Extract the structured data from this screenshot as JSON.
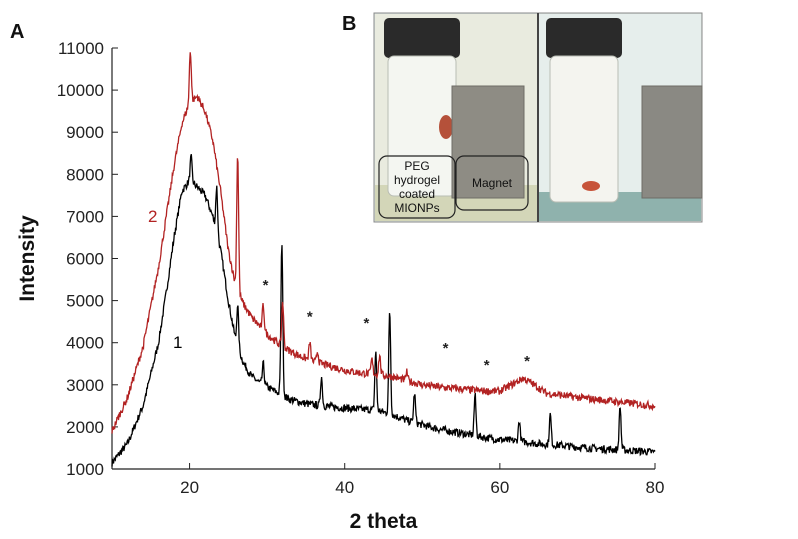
{
  "panels": {
    "a": "A",
    "b": "B"
  },
  "chart_data": {
    "type": "line",
    "xlabel": "2 theta",
    "ylabel": "Intensity",
    "xlim": [
      10,
      80
    ],
    "ylim": [
      1000,
      11000
    ],
    "xticks": [
      20,
      40,
      60,
      80
    ],
    "yticks": [
      1000,
      2000,
      3000,
      4000,
      5000,
      6000,
      7000,
      8000,
      9000,
      10000,
      11000
    ],
    "grid": false,
    "series": [
      {
        "name": "1",
        "color": "#000000",
        "points": [
          [
            10,
            1150
          ],
          [
            12,
            1600
          ],
          [
            14,
            2500
          ],
          [
            16,
            4000
          ],
          [
            17,
            5200
          ],
          [
            18,
            6500
          ],
          [
            19,
            7600
          ],
          [
            20,
            7850
          ],
          [
            21,
            7700
          ],
          [
            22,
            7500
          ],
          [
            23,
            7000
          ],
          [
            24,
            6200
          ],
          [
            25,
            5000
          ],
          [
            26,
            4000
          ],
          [
            27,
            3500
          ],
          [
            28,
            3200
          ],
          [
            29,
            3050
          ],
          [
            30,
            2950
          ],
          [
            31,
            2850
          ],
          [
            32,
            2750
          ],
          [
            33,
            2650
          ],
          [
            35,
            2550
          ],
          [
            37,
            2500
          ],
          [
            40,
            2450
          ],
          [
            42,
            2420
          ],
          [
            44,
            2400
          ],
          [
            46,
            2300
          ],
          [
            48,
            2150
          ],
          [
            50,
            2050
          ],
          [
            52,
            1950
          ],
          [
            55,
            1850
          ],
          [
            58,
            1750
          ],
          [
            60,
            1700
          ],
          [
            63,
            1650
          ],
          [
            65,
            1600
          ],
          [
            68,
            1560
          ],
          [
            70,
            1520
          ],
          [
            73,
            1480
          ],
          [
            76,
            1450
          ],
          [
            80,
            1400
          ]
        ],
        "peaks": [
          [
            20.2,
            8400
          ],
          [
            23.5,
            7700
          ],
          [
            26.2,
            4900
          ],
          [
            29.5,
            3500
          ],
          [
            31.9,
            6400
          ],
          [
            37,
            3200
          ],
          [
            44,
            3800
          ],
          [
            45.8,
            4750
          ],
          [
            49,
            2800
          ],
          [
            56.8,
            2750
          ],
          [
            62.5,
            2150
          ],
          [
            66.5,
            2300
          ],
          [
            75.5,
            2500
          ]
        ]
      },
      {
        "name": "2",
        "color": "#b22222",
        "points": [
          [
            10,
            1900
          ],
          [
            12,
            2700
          ],
          [
            14,
            3900
          ],
          [
            16,
            5800
          ],
          [
            17,
            7000
          ],
          [
            18,
            8200
          ],
          [
            19,
            9200
          ],
          [
            20,
            9700
          ],
          [
            21,
            9850
          ],
          [
            22,
            9500
          ],
          [
            23,
            8800
          ],
          [
            24,
            7600
          ],
          [
            25,
            6200
          ],
          [
            26,
            5300
          ],
          [
            27,
            4900
          ],
          [
            28,
            4600
          ],
          [
            29,
            4400
          ],
          [
            30,
            4200
          ],
          [
            31,
            4050
          ],
          [
            32,
            3900
          ],
          [
            34,
            3700
          ],
          [
            36,
            3550
          ],
          [
            38,
            3450
          ],
          [
            40,
            3350
          ],
          [
            42,
            3280
          ],
          [
            44,
            3250
          ],
          [
            46,
            3200
          ],
          [
            48,
            3100
          ],
          [
            50,
            3000
          ],
          [
            52,
            2950
          ],
          [
            55,
            2900
          ],
          [
            58,
            2850
          ],
          [
            60,
            2850
          ],
          [
            62,
            3050
          ],
          [
            63,
            3150
          ],
          [
            64,
            3050
          ],
          [
            66,
            2800
          ],
          [
            70,
            2700
          ],
          [
            75,
            2600
          ],
          [
            80,
            2500
          ]
        ],
        "peaks": [
          [
            20.1,
            10950
          ],
          [
            26.2,
            8500
          ],
          [
            29.5,
            4900
          ],
          [
            32,
            5000
          ],
          [
            35.5,
            4000
          ],
          [
            36.5,
            3800
          ],
          [
            43.5,
            3600
          ],
          [
            44.5,
            3700
          ],
          [
            48,
            3300
          ]
        ]
      }
    ],
    "annotations": [
      {
        "text": "*",
        "x": 29.8,
        "y": 5250
      },
      {
        "text": "*",
        "x": 35.5,
        "y": 4500
      },
      {
        "text": "*",
        "x": 42.8,
        "y": 4350
      },
      {
        "text": "*",
        "x": 53,
        "y": 3750
      },
      {
        "text": "*",
        "x": 58.3,
        "y": 3350
      },
      {
        "text": "*",
        "x": 63.5,
        "y": 3450
      }
    ]
  },
  "photo": {
    "labels": [
      "PEG",
      "hydrogel",
      "coated",
      "MIONPs"
    ],
    "magnet_label": "Magnet"
  }
}
